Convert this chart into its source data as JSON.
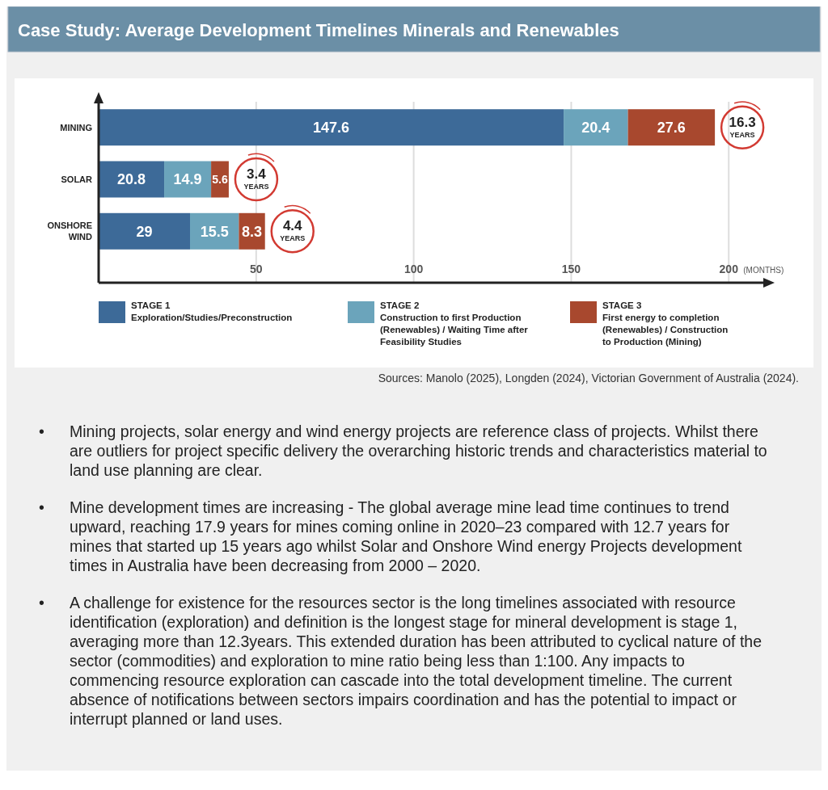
{
  "chart_data": {
    "type": "bar",
    "orientation": "horizontal",
    "stacked": true,
    "title": "Case Study: Average Development Timelines Minerals and Renewables",
    "categories": [
      "MINING",
      "SOLAR",
      "ONSHORE\nWIND"
    ],
    "series": [
      {
        "name": "STAGE 1\nExploration/Studies/Preconstruction",
        "color": "#3d6a98",
        "values": [
          147.6,
          20.8,
          29
        ]
      },
      {
        "name": "STAGE 2\nConstruction to first Production\n(Renewables) / Waiting Time after\nFeasibility Studies",
        "color": "#6ba4bb",
        "values": [
          20.4,
          14.9,
          15.5
        ]
      },
      {
        "name": "STAGE 3\nFirst energy to completion\n(Renewables) / Construction\nto Production (Mining)",
        "color": "#a8482e",
        "values": [
          27.6,
          5.6,
          8.3
        ]
      }
    ],
    "xlim": [
      0,
      212
    ],
    "xticks": [
      50,
      100,
      150,
      200
    ],
    "xlabel": "(MONTHS)",
    "grid": "x",
    "data_labels": true,
    "legend": "bottom",
    "annotations": [
      "Sources: Manolo (2025), Longden (2024), Victorian Government of Australia (2024).",
      {
        "text": "16.3 YEARS",
        "x": 195.6,
        "y": "MINING"
      },
      {
        "text": "3.4 YEARS",
        "x": 41.3,
        "y": "SOLAR"
      },
      {
        "text": "4.4 YEARS",
        "x": 52.8,
        "y": "ONSHORE\nWIND"
      },
      "• Mining projects, solar energy and wind energy projects are reference class of projects. Whilst there are outliers for project specific delivery the overarching historic trends and characteristics material to land use planning are clear.",
      "• Mine development times are increasing - The global average mine lead time continues to trend upward, reaching 17.9 years for mines coming online in 2020–23 compared with 12.7 years for mines that started up 15 years ago whilst Solar and Onshore Wind energy Projects development times in Australia have been decreasing from 2000 – 2020.",
      "• A challenge for existence for the resources sector is the long timelines associated with resource identification (exploration) and definition is the longest stage for mineral development is stage 1, averaging more than 12.3years. This extended duration has been attributed to cyclical nature of the sector (commodities) and exploration to mine ratio being less than 1:100. Any impacts to commencing resource exploration can cascade into the total development timeline. The current absence of notifications between sectors impairs coordination and has the potential to impact or interrupt planned or land uses."
    ]
  }
}
